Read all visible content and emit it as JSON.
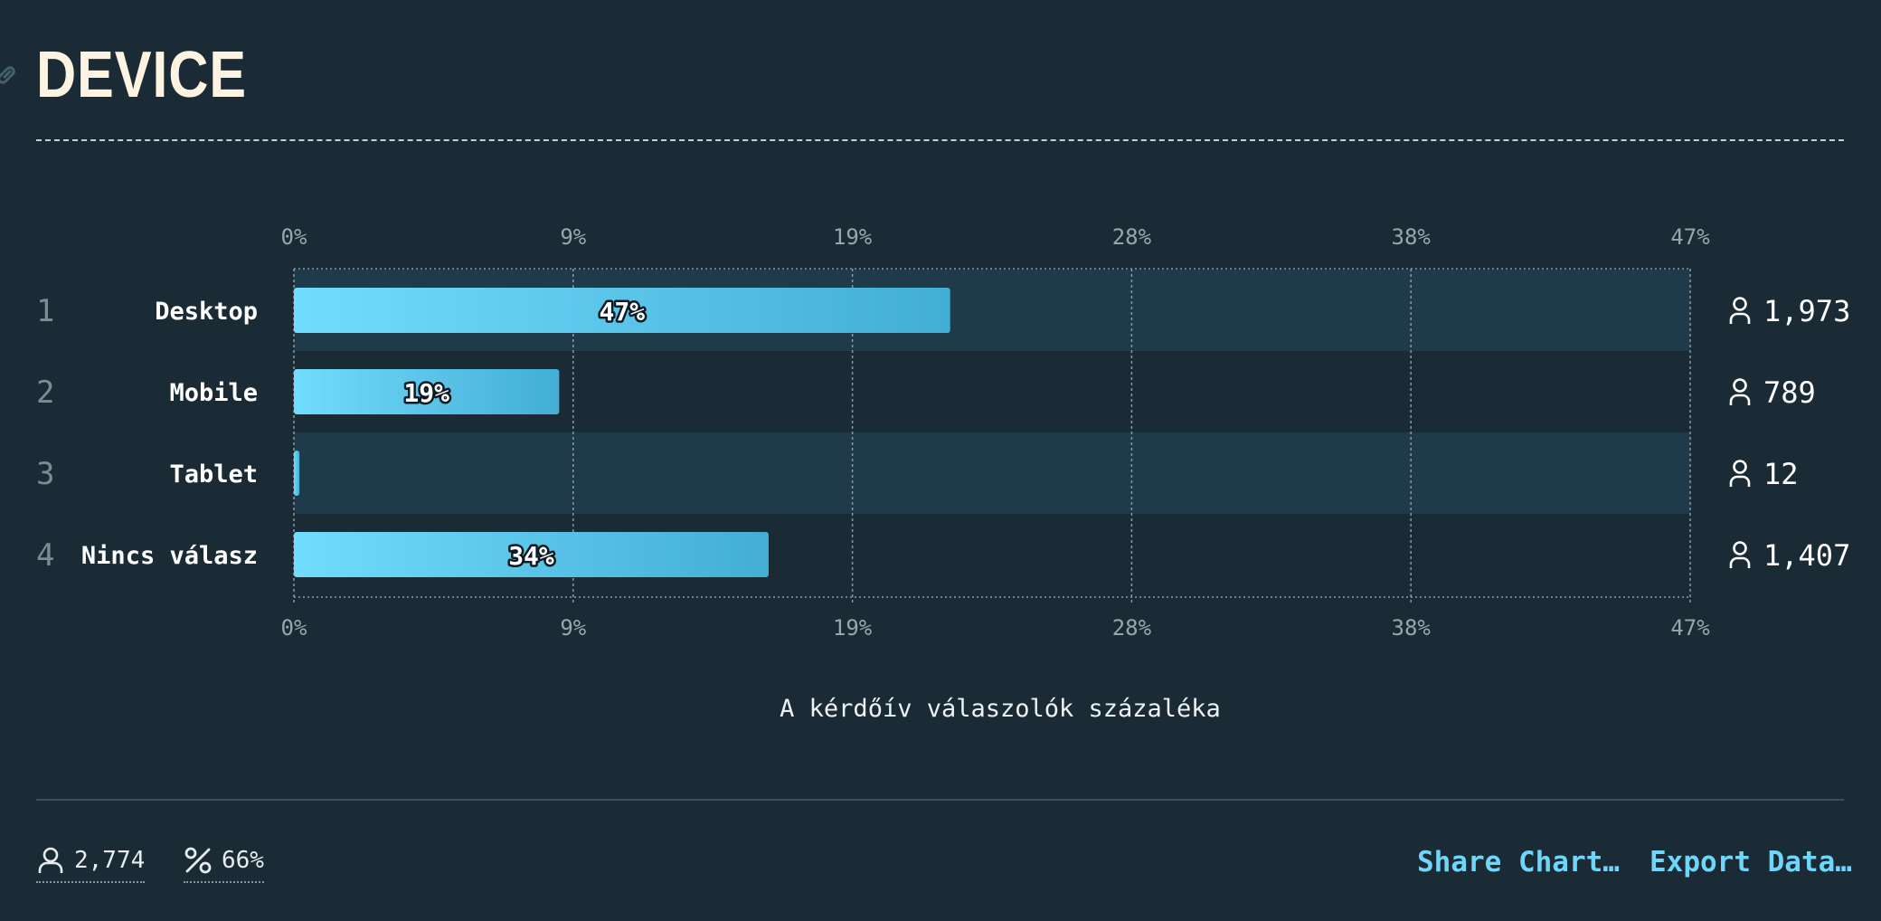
{
  "title": "DEVICE",
  "chart_data": {
    "type": "bar",
    "orientation": "horizontal",
    "categories": [
      "Desktop",
      "Mobile",
      "Tablet",
      "Nincs válasz"
    ],
    "ranks": [
      "1",
      "2",
      "3",
      "4"
    ],
    "values": [
      47,
      19,
      0.4,
      34
    ],
    "value_labels": [
      "47%",
      "19%",
      "",
      "34%"
    ],
    "counts": [
      "1,973",
      "789",
      "12",
      "1,407"
    ],
    "xlim": [
      0,
      100
    ],
    "ticks": [
      0,
      9,
      19,
      28,
      38,
      47
    ],
    "tick_labels": [
      "0%",
      "9%",
      "19%",
      "28%",
      "38%",
      "47%"
    ],
    "xlabel": "A kérdőív válaszolók százaléka",
    "grid": true,
    "colors": {
      "bar_start": "#72dcfd",
      "bar_end": "#43aed4",
      "row_band": "#1f3a4b",
      "grid": "#8a9aa4"
    }
  },
  "footer": {
    "respondents": "2,774",
    "response_rate": "66%",
    "share_label": "Share Chart…",
    "export_label": "Export Data…"
  },
  "icons": {
    "respondent": "person-icon",
    "rate": "percent-icon",
    "anchor": "link-icon"
  }
}
